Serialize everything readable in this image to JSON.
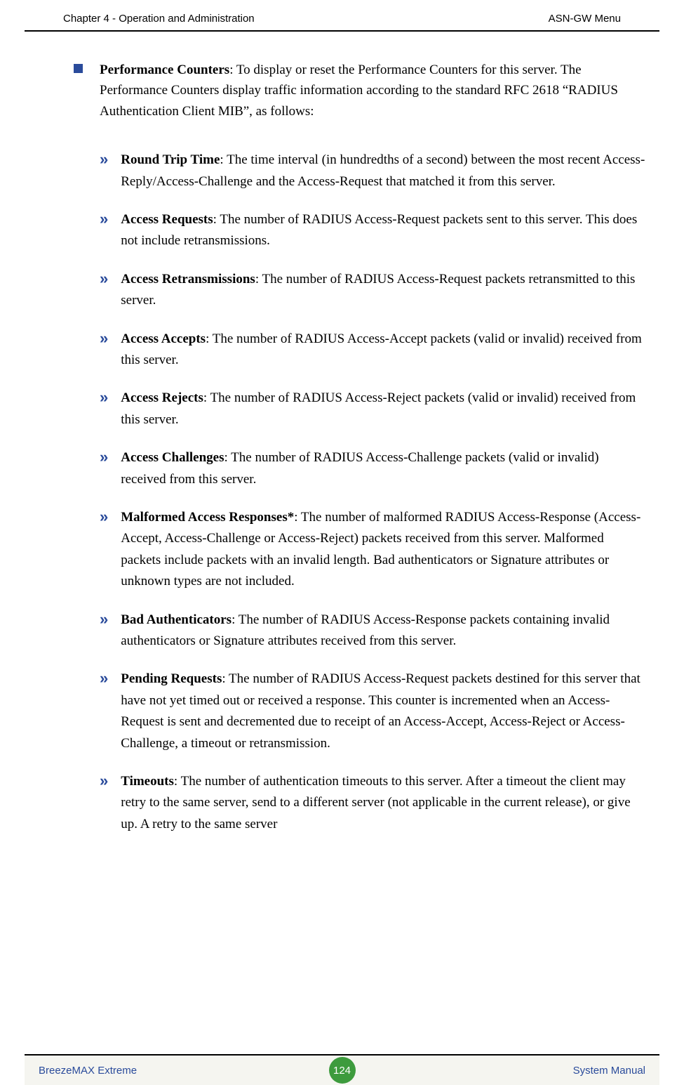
{
  "header": {
    "left": "Chapter 4 - Operation and Administration",
    "right": "ASN-GW Menu"
  },
  "main": {
    "title": "Performance Counters",
    "desc": ": To display or reset the Performance Counters for this server. The Performance Counters display traffic information according to the standard RFC 2618 “RADIUS Authentication Client MIB”, as follows:"
  },
  "items": [
    {
      "title": "Round Trip Time",
      "desc": ": The time interval (in hundredths of a second) between the most recent Access-Reply/Access-Challenge and the Access-Request that matched it from this server."
    },
    {
      "title": "Access Requests",
      "desc": ": The number of RADIUS Access-Request packets sent to this server. This does not include retransmissions."
    },
    {
      "title": "Access Retransmissions",
      "desc": ": The number of RADIUS Access-Request packets retransmitted to this server."
    },
    {
      "title": "Access Accepts",
      "desc": ": The number of RADIUS Access-Accept packets (valid or invalid) received from this server."
    },
    {
      "title": "Access Rejects",
      "desc": ": The number of RADIUS Access-Reject packets (valid or invalid) received from this server."
    },
    {
      "title": "Access Challenges",
      "desc": ": The number of RADIUS Access-Challenge packets (valid or invalid) received from this server."
    },
    {
      "title": "Malformed Access Responses*",
      "desc": ": The number of malformed RADIUS Access-Response (Access-Accept, Access-Challenge or Access-Reject) packets received from this server. Malformed packets include packets with an invalid length. Bad authenticators or Signature attributes or unknown types are not included."
    },
    {
      "title": "Bad Authenticators",
      "desc": ": The number of RADIUS Access-Response packets containing invalid authenticators or Signature attributes received from this server."
    },
    {
      "title": "Pending Requests",
      "desc": ": The number of RADIUS Access-Request packets destined for this server that have not yet timed out or received a response. This counter is incremented when an Access-Request is sent and decremented due to receipt of an Access-Accept, Access-Reject or Access-Challenge, a timeout or retransmission."
    },
    {
      "title": "Timeouts",
      "desc": ": The number of authentication timeouts to this server. After a timeout the client may retry to the same server, send to a different server (not applicable in the current release), or give up. A retry to the same server"
    }
  ],
  "footer": {
    "left": "BreezeMAX Extreme",
    "page": "124",
    "right": "System Manual"
  }
}
